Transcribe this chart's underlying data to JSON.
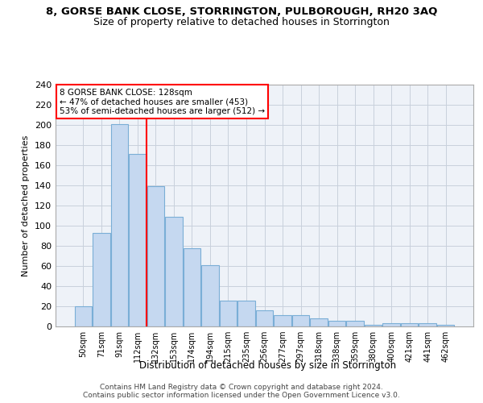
{
  "title_line1": "8, GORSE BANK CLOSE, STORRINGTON, PULBOROUGH, RH20 3AQ",
  "title_line2": "Size of property relative to detached houses in Storrington",
  "xlabel": "Distribution of detached houses by size in Storrington",
  "ylabel": "Number of detached properties",
  "categories": [
    "50sqm",
    "71sqm",
    "91sqm",
    "112sqm",
    "132sqm",
    "153sqm",
    "174sqm",
    "194sqm",
    "215sqm",
    "235sqm",
    "256sqm",
    "277sqm",
    "297sqm",
    "318sqm",
    "338sqm",
    "359sqm",
    "380sqm",
    "400sqm",
    "421sqm",
    "441sqm",
    "462sqm"
  ],
  "values": [
    20,
    93,
    201,
    171,
    139,
    109,
    78,
    61,
    26,
    26,
    16,
    11,
    11,
    8,
    6,
    6,
    2,
    3,
    3,
    3,
    2
  ],
  "bar_color": "#c5d8f0",
  "bar_edge_color": "#7aaed6",
  "grid_color": "#c8d0dc",
  "background_color": "#eef2f8",
  "vline_color": "red",
  "vline_x": 3.5,
  "annotation_text": "8 GORSE BANK CLOSE: 128sqm\n← 47% of detached houses are smaller (453)\n53% of semi-detached houses are larger (512) →",
  "annotation_box_color": "red",
  "ylim": [
    0,
    240
  ],
  "yticks": [
    0,
    20,
    40,
    60,
    80,
    100,
    120,
    140,
    160,
    180,
    200,
    220,
    240
  ],
  "footer_line1": "Contains HM Land Registry data © Crown copyright and database right 2024.",
  "footer_line2": "Contains public sector information licensed under the Open Government Licence v3.0."
}
